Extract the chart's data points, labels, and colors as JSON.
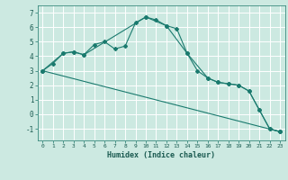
{
  "xlabel": "Humidex (Indice chaleur)",
  "background_color": "#cce9e1",
  "grid_color": "#ffffff",
  "line_color": "#1a7a6e",
  "xlim": [
    -0.5,
    23.5
  ],
  "ylim": [
    -1.8,
    7.5
  ],
  "yticks": [
    -1,
    0,
    1,
    2,
    3,
    4,
    5,
    6,
    7
  ],
  "xticks": [
    0,
    1,
    2,
    3,
    4,
    5,
    6,
    7,
    8,
    9,
    10,
    11,
    12,
    13,
    14,
    15,
    16,
    17,
    18,
    19,
    20,
    21,
    22,
    23
  ],
  "line1_x": [
    0,
    1,
    2,
    3,
    4,
    5,
    6,
    7,
    8,
    9,
    10,
    11,
    12,
    13,
    14,
    15,
    16,
    17,
    18,
    19,
    20,
    21,
    22,
    23
  ],
  "line1_y": [
    3.0,
    3.5,
    4.2,
    4.3,
    4.1,
    4.8,
    5.0,
    4.5,
    4.7,
    6.3,
    6.7,
    6.5,
    6.1,
    5.9,
    4.2,
    3.0,
    2.5,
    2.2,
    2.1,
    2.0,
    1.6,
    0.3,
    -1.0,
    -1.2
  ],
  "line2_x": [
    0,
    2,
    3,
    4,
    10,
    12,
    14,
    16,
    17,
    18,
    19,
    20,
    21,
    22,
    23
  ],
  "line2_y": [
    3.0,
    4.2,
    4.3,
    4.1,
    6.7,
    6.1,
    4.2,
    2.5,
    2.2,
    2.1,
    2.0,
    1.6,
    0.3,
    -1.0,
    -1.2
  ],
  "line3_x": [
    0,
    23
  ],
  "line3_y": [
    3.0,
    -1.2
  ]
}
